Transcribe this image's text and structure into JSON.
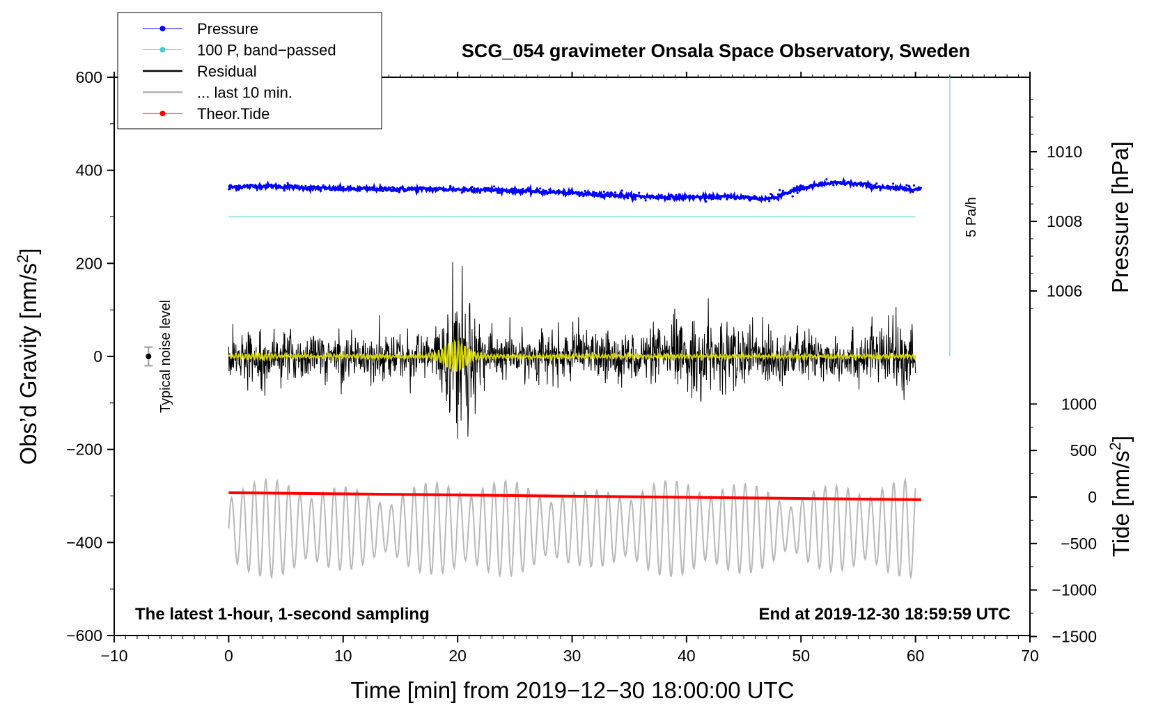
{
  "chart_data": {
    "type": "line",
    "title": "SCG_054 gravimeter Onsala Space Observatory, Sweden",
    "footer_left": "The latest 1-hour, 1-second sampling",
    "footer_right": "End at 2019-12-30 18:59:59 UTC",
    "xlabel": "Time [min] from 2019−12−30 18:00:00 UTC",
    "xlim": [
      -10,
      70
    ],
    "xticks": [
      -10,
      0,
      10,
      20,
      30,
      40,
      50,
      60,
      70
    ],
    "xtick_labels": [
      "−10",
      "0",
      "10",
      "20",
      "30",
      "40",
      "50",
      "60",
      "70"
    ],
    "y_left": {
      "label": "Obs’d Gravity [nm/s²]",
      "label_main": "Obs’d Gravity [nm/s",
      "label_sup": "2",
      "label_end": "]",
      "range": [
        -600,
        600
      ],
      "ticks": [
        -600,
        -400,
        -200,
        0,
        200,
        400,
        600
      ],
      "tick_labels": [
        "−600",
        "−400",
        "−200",
        "0",
        "200",
        "400",
        "600"
      ]
    },
    "y_right_pressure": {
      "label": "Pressure [hPa]",
      "ticks": [
        1006,
        1008,
        1010
      ],
      "tick_labels": [
        "1006",
        "1008",
        "1010"
      ]
    },
    "y_right_tide": {
      "label": "Tide [nm/s²]",
      "label_main": "Tide [nm/s",
      "label_sup": "2",
      "label_end": "]",
      "ticks": [
        -1500,
        -1000,
        -500,
        0,
        500,
        1000
      ],
      "tick_labels": [
        "−1500",
        "−1000",
        "−500",
        "0",
        "500",
        "1000"
      ]
    },
    "legend": [
      {
        "label": "Pressure",
        "color": "#0000ff",
        "marker": true
      },
      {
        "label": "100 P, band−passed",
        "color": "#40d0d0",
        "marker": true
      },
      {
        "label": "Residual",
        "color": "#000000",
        "marker": false
      },
      {
        "label": "... last 10 min.",
        "color": "#b0b0b0",
        "marker": false
      },
      {
        "label": "Theor.Tide",
        "color": "#ff0000",
        "marker": true
      }
    ],
    "noise_label": "Typical noise level",
    "noise_marker": {
      "x": -7,
      "y": 0,
      "err": 20
    },
    "scale_bar_label": "5 Pa/h",
    "scale_bar": {
      "x": 63,
      "y_top": 600,
      "y_bottom": 0
    },
    "series": [
      {
        "name": "Pressure",
        "color": "#0000ff",
        "offset_nm": 360,
        "shape": "slow wave 330–370 nm/s² display units, min near 40 min"
      },
      {
        "name": "100 P, band-passed",
        "color": "#40d0d0",
        "constant_nm": 300
      },
      {
        "name": "Residual",
        "color": "#000000",
        "baseline": 0,
        "typical_amplitude": 50,
        "max": 235,
        "min": -185,
        "burst_at_min": 20.5
      },
      {
        "name": "Residual filtered",
        "color": "#d4d400",
        "baseline": 0,
        "burst_amplitude": 35
      },
      {
        "name": "Theor.Tide",
        "color": "#ff0000",
        "start": [
          0,
          -293
        ],
        "end": [
          60.5,
          -308
        ]
      },
      {
        "name": "... last 10 min.",
        "color": "#b0b0b0",
        "baseline": -370,
        "amplitude": 90
      }
    ]
  }
}
